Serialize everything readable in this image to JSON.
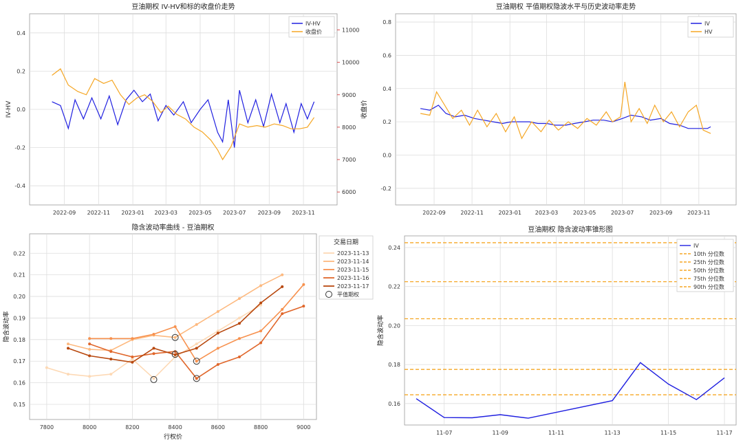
{
  "colors": {
    "blue": "#1f1fe0",
    "orange": "#f5a623",
    "red": "#d62728",
    "grid": "#dddddd",
    "frame": "#999999"
  },
  "chart_data": [
    {
      "type": "line",
      "title": "豆油期权 IV-HV和标的收盘价走势",
      "ylabel": "IV-HV",
      "ylabel_right": "收盘价",
      "x_ticks": [
        "2022-09",
        "2022-11",
        "2023-01",
        "2023-03",
        "2023-05",
        "2023-07",
        "2023-09",
        "2023-11"
      ],
      "y_ticks": [
        "-0.4",
        "-0.2",
        "0.0",
        "0.2",
        "0.4"
      ],
      "y_ticks_right": [
        "6000",
        "7000",
        "8000",
        "9000",
        "10000",
        "11000"
      ],
      "ylim": [
        -0.5,
        0.5
      ],
      "ylim_right": [
        5600,
        11500
      ],
      "legend": [
        "IV-HV",
        "收盘价"
      ],
      "legend_loc": "upper right",
      "grid": true,
      "series": [
        {
          "name": "IV-HV",
          "axis": "left",
          "points": [
            [
              "2022-08-10",
              0.04
            ],
            [
              "2022-08-25",
              0.02
            ],
            [
              "2022-09-08",
              -0.1
            ],
            [
              "2022-09-20",
              0.05
            ],
            [
              "2022-10-05",
              -0.05
            ],
            [
              "2022-10-20",
              0.06
            ],
            [
              "2022-11-05",
              -0.05
            ],
            [
              "2022-11-20",
              0.07
            ],
            [
              "2022-12-05",
              -0.08
            ],
            [
              "2022-12-20",
              0.05
            ],
            [
              "2023-01-03",
              0.1
            ],
            [
              "2023-01-18",
              0.04
            ],
            [
              "2023-02-01",
              0.08
            ],
            [
              "2023-02-15",
              -0.06
            ],
            [
              "2023-03-01",
              0.02
            ],
            [
              "2023-03-15",
              -0.03
            ],
            [
              "2023-04-01",
              0.04
            ],
            [
              "2023-04-15",
              -0.07
            ],
            [
              "2023-05-01",
              0.0
            ],
            [
              "2023-05-15",
              0.05
            ],
            [
              "2023-06-01",
              -0.12
            ],
            [
              "2023-06-10",
              -0.17
            ],
            [
              "2023-06-20",
              0.05
            ],
            [
              "2023-07-01",
              -0.2
            ],
            [
              "2023-07-10",
              0.1
            ],
            [
              "2023-07-25",
              -0.07
            ],
            [
              "2023-08-08",
              0.05
            ],
            [
              "2023-08-22",
              -0.09
            ],
            [
              "2023-09-05",
              0.08
            ],
            [
              "2023-09-20",
              -0.07
            ],
            [
              "2023-10-01",
              0.03
            ],
            [
              "2023-10-15",
              -0.12
            ],
            [
              "2023-10-28",
              0.03
            ],
            [
              "2023-11-08",
              -0.05
            ],
            [
              "2023-11-20",
              0.04
            ]
          ]
        },
        {
          "name": "收盘价",
          "axis": "right",
          "points": [
            [
              "2022-08-10",
              9600
            ],
            [
              "2022-08-25",
              9800
            ],
            [
              "2022-09-08",
              9300
            ],
            [
              "2022-09-25",
              9100
            ],
            [
              "2022-10-10",
              9000
            ],
            [
              "2022-10-25",
              9500
            ],
            [
              "2022-11-10",
              9350
            ],
            [
              "2022-11-25",
              9450
            ],
            [
              "2022-12-10",
              9000
            ],
            [
              "2022-12-25",
              8700
            ],
            [
              "2023-01-08",
              8900
            ],
            [
              "2023-01-22",
              9000
            ],
            [
              "2023-02-05",
              8800
            ],
            [
              "2023-02-20",
              8450
            ],
            [
              "2023-03-05",
              8650
            ],
            [
              "2023-03-20",
              8400
            ],
            [
              "2023-04-05",
              8250
            ],
            [
              "2023-04-20",
              8000
            ],
            [
              "2023-05-05",
              7850
            ],
            [
              "2023-05-20",
              7600
            ],
            [
              "2023-06-01",
              7300
            ],
            [
              "2023-06-10",
              7000
            ],
            [
              "2023-06-25",
              7400
            ],
            [
              "2023-07-10",
              8100
            ],
            [
              "2023-07-25",
              8000
            ],
            [
              "2023-08-10",
              8050
            ],
            [
              "2023-08-25",
              8000
            ],
            [
              "2023-09-10",
              8100
            ],
            [
              "2023-09-25",
              8050
            ],
            [
              "2023-10-10",
              7950
            ],
            [
              "2023-10-25",
              7950
            ],
            [
              "2023-11-08",
              8000
            ],
            [
              "2023-11-20",
              8300
            ]
          ]
        }
      ]
    },
    {
      "type": "line",
      "title": "豆油期权 平值期权隐波水平与历史波动率走势",
      "x_ticks": [
        "2022-09",
        "2022-11",
        "2023-01",
        "2023-03",
        "2023-05",
        "2023-07",
        "2023-09",
        "2023-11"
      ],
      "y_ticks": [
        "-0.2",
        "0.0",
        "0.2",
        "0.4",
        "0.6",
        "0.8"
      ],
      "ylim": [
        -0.3,
        0.85
      ],
      "legend": [
        "IV",
        "HV"
      ],
      "legend_loc": "upper right",
      "grid": true,
      "series": [
        {
          "name": "IV",
          "points": [
            [
              "2022-08-10",
              0.28
            ],
            [
              "2022-08-25",
              0.27
            ],
            [
              "2022-09-08",
              0.3
            ],
            [
              "2022-09-20",
              0.25
            ],
            [
              "2022-10-05",
              0.23
            ],
            [
              "2022-10-20",
              0.24
            ],
            [
              "2022-11-05",
              0.22
            ],
            [
              "2022-11-20",
              0.21
            ],
            [
              "2022-12-05",
              0.2
            ],
            [
              "2022-12-20",
              0.19
            ],
            [
              "2023-01-03",
              0.2
            ],
            [
              "2023-01-18",
              0.2
            ],
            [
              "2023-02-01",
              0.2
            ],
            [
              "2023-02-15",
              0.19
            ],
            [
              "2023-03-01",
              0.19
            ],
            [
              "2023-03-15",
              0.18
            ],
            [
              "2023-04-01",
              0.18
            ],
            [
              "2023-04-15",
              0.19
            ],
            [
              "2023-05-01",
              0.2
            ],
            [
              "2023-05-15",
              0.21
            ],
            [
              "2023-06-01",
              0.21
            ],
            [
              "2023-06-15",
              0.2
            ],
            [
              "2023-07-01",
              0.22
            ],
            [
              "2023-07-15",
              0.24
            ],
            [
              "2023-08-01",
              0.23
            ],
            [
              "2023-08-15",
              0.21
            ],
            [
              "2023-09-01",
              0.22
            ],
            [
              "2023-09-15",
              0.19
            ],
            [
              "2023-10-01",
              0.18
            ],
            [
              "2023-10-15",
              0.16
            ],
            [
              "2023-11-01",
              0.16
            ],
            [
              "2023-11-15",
              0.16
            ],
            [
              "2023-11-20",
              0.17
            ]
          ]
        },
        {
          "name": "HV",
          "points": [
            [
              "2022-08-10",
              0.25
            ],
            [
              "2022-08-25",
              0.24
            ],
            [
              "2022-09-05",
              0.38
            ],
            [
              "2022-09-18",
              0.3
            ],
            [
              "2022-10-01",
              0.22
            ],
            [
              "2022-10-15",
              0.27
            ],
            [
              "2022-10-28",
              0.18
            ],
            [
              "2022-11-10",
              0.27
            ],
            [
              "2022-11-25",
              0.17
            ],
            [
              "2022-12-10",
              0.25
            ],
            [
              "2022-12-25",
              0.14
            ],
            [
              "2023-01-08",
              0.23
            ],
            [
              "2023-01-20",
              0.1
            ],
            [
              "2023-02-05",
              0.2
            ],
            [
              "2023-02-20",
              0.14
            ],
            [
              "2023-03-05",
              0.21
            ],
            [
              "2023-03-20",
              0.15
            ],
            [
              "2023-04-05",
              0.2
            ],
            [
              "2023-04-20",
              0.16
            ],
            [
              "2023-05-05",
              0.22
            ],
            [
              "2023-05-20",
              0.18
            ],
            [
              "2023-06-05",
              0.26
            ],
            [
              "2023-06-15",
              0.2
            ],
            [
              "2023-06-28",
              0.23
            ],
            [
              "2023-07-05",
              0.44
            ],
            [
              "2023-07-15",
              0.2
            ],
            [
              "2023-07-28",
              0.28
            ],
            [
              "2023-08-10",
              0.19
            ],
            [
              "2023-08-22",
              0.3
            ],
            [
              "2023-09-05",
              0.2
            ],
            [
              "2023-09-18",
              0.26
            ],
            [
              "2023-10-01",
              0.17
            ],
            [
              "2023-10-15",
              0.26
            ],
            [
              "2023-10-28",
              0.3
            ],
            [
              "2023-11-08",
              0.15
            ],
            [
              "2023-11-20",
              0.13
            ]
          ]
        }
      ]
    },
    {
      "type": "line",
      "title": "隐含波动率曲线 - 豆油期权",
      "xlabel": "行权价",
      "ylabel": "隐含波动率",
      "x_ticks": [
        "7800",
        "8000",
        "8200",
        "8400",
        "8600",
        "8800",
        "9000"
      ],
      "y_ticks": [
        "0.15",
        "0.16",
        "0.17",
        "0.18",
        "0.19",
        "0.20",
        "0.21",
        "0.22"
      ],
      "xlim": [
        7720,
        9060
      ],
      "ylim": [
        0.143,
        0.229
      ],
      "legend_title": "交易日期",
      "legend": [
        "2023-11-13",
        "2023-11-14",
        "2023-11-15",
        "2023-11-16",
        "2023-11-17",
        "平值期权"
      ],
      "series_colors": [
        "#fdd9b5",
        "#fdb97f",
        "#f7914e",
        "#e0662a",
        "#b8480e"
      ],
      "series": [
        {
          "name": "2023-11-13",
          "points": [
            [
              7800,
              0.167
            ],
            [
              7900,
              0.164
            ],
            [
              8000,
              0.163
            ],
            [
              8100,
              0.164
            ],
            [
              8200,
              0.171
            ],
            [
              8300,
              0.162
            ],
            [
              8400,
              0.172
            ],
            [
              8500,
              0.178
            ],
            [
              8600,
              0.184
            ],
            [
              8700,
              0.19
            ],
            [
              8800,
              0.196
            ]
          ]
        },
        {
          "name": "2023-11-14",
          "points": [
            [
              7900,
              0.178
            ],
            [
              8000,
              0.1755
            ],
            [
              8100,
              0.175
            ],
            [
              8200,
              0.18
            ],
            [
              8300,
              0.182
            ],
            [
              8400,
              0.181
            ],
            [
              8500,
              0.187
            ],
            [
              8600,
              0.193
            ],
            [
              8700,
              0.199
            ],
            [
              8800,
              0.205
            ],
            [
              8900,
              0.21
            ]
          ]
        },
        {
          "name": "2023-11-15",
          "points": [
            [
              8000,
              0.1805
            ],
            [
              8100,
              0.1805
            ],
            [
              8200,
              0.1805
            ],
            [
              8300,
              0.1825
            ],
            [
              8400,
              0.186
            ],
            [
              8500,
              0.17
            ],
            [
              8600,
              0.176
            ],
            [
              8700,
              0.1805
            ],
            [
              8800,
              0.184
            ],
            [
              8900,
              0.194
            ],
            [
              9000,
              0.2055
            ]
          ]
        },
        {
          "name": "2023-11-16",
          "points": [
            [
              8000,
              0.178
            ],
            [
              8100,
              0.1745
            ],
            [
              8200,
              0.172
            ],
            [
              8300,
              0.1735
            ],
            [
              8400,
              0.1745
            ],
            [
              8500,
              0.162
            ],
            [
              8600,
              0.1685
            ],
            [
              8700,
              0.172
            ],
            [
              8800,
              0.1785
            ],
            [
              8900,
              0.192
            ],
            [
              9000,
              0.1955
            ]
          ]
        },
        {
          "name": "2023-11-17",
          "points": [
            [
              7900,
              0.176
            ],
            [
              8000,
              0.1725
            ],
            [
              8100,
              0.171
            ],
            [
              8200,
              0.1695
            ],
            [
              8300,
              0.176
            ],
            [
              8400,
              0.173
            ],
            [
              8500,
              0.176
            ],
            [
              8600,
              0.183
            ],
            [
              8700,
              0.1875
            ],
            [
              8800,
              0.197
            ],
            [
              8900,
              0.2045
            ]
          ]
        }
      ],
      "atm_points": [
        [
          8300,
          0.1615
        ],
        [
          8400,
          0.181
        ],
        [
          8400,
          0.1732
        ],
        [
          8500,
          0.17
        ],
        [
          8500,
          0.162
        ]
      ]
    },
    {
      "type": "line",
      "title": "豆油期权 隐含波动率锥形图",
      "ylabel": "隐含波动率",
      "x_ticks": [
        "11-07",
        "11-09",
        "11-11",
        "11-13",
        "11-15",
        "11-17"
      ],
      "y_ticks": [
        "0.16",
        "0.18",
        "0.20",
        "0.22",
        "0.24"
      ],
      "xlim": [
        "2023-11-05T14:00",
        "2023-11-17T10:00"
      ],
      "ylim": [
        0.149,
        0.246
      ],
      "legend": [
        "IV",
        "10th 分位数",
        "25th 分位数",
        "50th 分位数",
        "75th 分位数",
        "90th 分位数"
      ],
      "legend_loc": "upper right",
      "grid": true,
      "series": [
        {
          "name": "IV",
          "points": [
            [
              "2023-11-06",
              0.1625
            ],
            [
              "2023-11-07",
              0.1528
            ],
            [
              "2023-11-08",
              0.1527
            ],
            [
              "2023-11-09",
              0.1543
            ],
            [
              "2023-11-10",
              0.1525
            ],
            [
              "2023-11-13",
              0.1615
            ],
            [
              "2023-11-14",
              0.181
            ],
            [
              "2023-11-15",
              0.17
            ],
            [
              "2023-11-16",
              0.162
            ],
            [
              "2023-11-17",
              0.1732
            ]
          ]
        }
      ],
      "quantiles": [
        {
          "name": "10th 分位数",
          "value": 0.1645
        },
        {
          "name": "25th 分位数",
          "value": 0.1775
        },
        {
          "name": "50th 分位数",
          "value": 0.2035
        },
        {
          "name": "75th 分位数",
          "value": 0.2225
        },
        {
          "name": "90th 分位数",
          "value": 0.2425
        }
      ]
    }
  ]
}
